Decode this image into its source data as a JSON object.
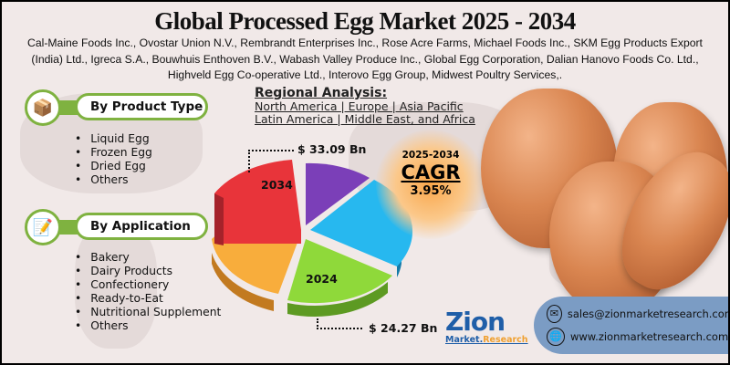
{
  "title": "Global Processed Egg Market 2025 - 2034",
  "companies": "Cal-Maine Foods Inc., Ovostar Union N.V., Rembrandt Enterprises Inc., Rose Acre Farms, Michael Foods Inc., SKM Egg Products Export (India) Ltd., Igreca S.A., Bouwhuis Enthoven B.V., Wabash Valley Produce Inc., Global Egg Corporation, Dalian Hanovo Foods Co. Ltd., Highveld Egg Co-operative Ltd., Interovo Egg Group, Midwest Poultry Services,.",
  "product_type": {
    "heading": "By Product Type",
    "icon": "box-check-icon",
    "items": [
      "Liquid Egg",
      "Frozen Egg",
      "Dried Egg",
      "Others"
    ]
  },
  "application": {
    "heading": "By Application",
    "icon": "document-pen-icon",
    "items": [
      "Bakery",
      "Dairy Products",
      "Confectionery",
      "Ready-to-Eat",
      "Nutritional Supplement",
      "Others"
    ]
  },
  "regional": {
    "heading": "Regional Analysis:",
    "line1": "North America | Europe | Asia Pacific",
    "line2": "Latin America | Middle East, and Africa"
  },
  "pie": {
    "label_2034": "2034",
    "label_2024": "2024",
    "value_2034": "$ 33.09 Bn",
    "value_2024": "$ 24.27 Bn",
    "colors": [
      "#e8343a",
      "#7b3fb8",
      "#27b8ef",
      "#8fd93a",
      "#f8ad3c"
    ]
  },
  "cagr": {
    "period": "2025-2034",
    "label": "CAGR",
    "value": "3.95%"
  },
  "contact": {
    "email": "sales@zionmarketresearch.com",
    "website": "www.zionmarketresearch.com"
  },
  "logo": {
    "name": "Zion",
    "sub1": "Market.",
    "sub2": "Research"
  }
}
